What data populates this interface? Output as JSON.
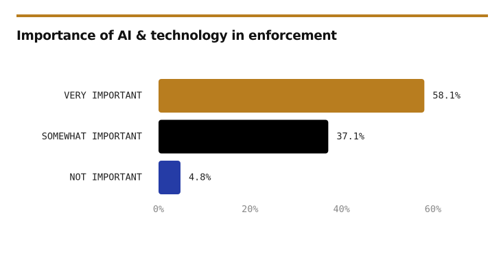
{
  "chart_data": {
    "type": "bar",
    "orientation": "horizontal",
    "title": "Importance of AI & technology in enforcement",
    "categories": [
      "VERY IMPORTANT",
      "SOMEWHAT IMPORTANT",
      "NOT IMPORTANT"
    ],
    "values": [
      58.1,
      37.1,
      4.8
    ],
    "value_labels": [
      "58.1%",
      "37.1%",
      "4.8%"
    ],
    "bar_colors": [
      "#b87d1f",
      "#000000",
      "#253ca6"
    ],
    "xlim": [
      0,
      60
    ],
    "x_ticks": [
      0,
      20,
      40,
      60
    ],
    "x_tick_labels": [
      "0%",
      "20%",
      "40%",
      "60%"
    ],
    "xlabel": "",
    "ylabel": "",
    "grid": false,
    "legend": "none"
  }
}
